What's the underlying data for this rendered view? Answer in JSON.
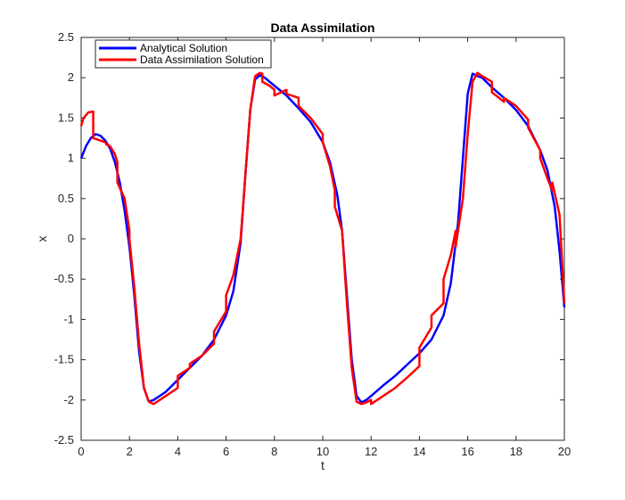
{
  "chart_data": {
    "type": "line",
    "title": "Data Assimilation",
    "xlabel": "t",
    "ylabel": "x",
    "xlim": [
      0,
      20
    ],
    "ylim": [
      -2.5,
      2.5
    ],
    "xticks": [
      0,
      2,
      4,
      6,
      8,
      10,
      12,
      14,
      16,
      18,
      20
    ],
    "yticks": [
      2.5,
      2,
      1.5,
      1,
      0.5,
      0,
      -0.5,
      -1,
      -1.5,
      -2,
      -2.5
    ],
    "xtick_labels": [
      "0",
      "2",
      "4",
      "6",
      "8",
      "10",
      "12",
      "14",
      "16",
      "18",
      "20"
    ],
    "ytick_labels": [
      "2.5",
      "2",
      "1.5",
      "1",
      "0.5",
      "0",
      "-0.5",
      "-1",
      "-1.5",
      "-2",
      "-2.5"
    ],
    "grid": false,
    "legend_position": "top-left",
    "series": [
      {
        "name": "Analytical Solution",
        "color": "#0000ff",
        "x": [
          0,
          0.2,
          0.4,
          0.6,
          0.8,
          1.0,
          1.2,
          1.4,
          1.6,
          1.8,
          2.0,
          2.2,
          2.4,
          2.6,
          2.8,
          3.0,
          3.5,
          4.0,
          4.5,
          5.0,
          5.5,
          6.0,
          6.3,
          6.6,
          6.8,
          7.0,
          7.2,
          7.4,
          7.6,
          8.0,
          8.5,
          9.0,
          9.5,
          10.0,
          10.3,
          10.6,
          10.8,
          11.0,
          11.2,
          11.4,
          11.6,
          11.8,
          12.0,
          12.5,
          13.0,
          13.5,
          14.0,
          14.5,
          15.0,
          15.3,
          15.6,
          15.8,
          16.0,
          16.2,
          16.4,
          16.6,
          17.0,
          17.5,
          18.0,
          18.5,
          19.0,
          19.3,
          19.6,
          19.8,
          20.0
        ],
        "y": [
          1.0,
          1.15,
          1.25,
          1.3,
          1.28,
          1.22,
          1.12,
          0.95,
          0.7,
          0.35,
          -0.1,
          -0.7,
          -1.4,
          -1.85,
          -2.02,
          -2.0,
          -1.9,
          -1.75,
          -1.6,
          -1.45,
          -1.25,
          -0.95,
          -0.65,
          -0.05,
          0.8,
          1.6,
          1.98,
          2.03,
          2.0,
          1.9,
          1.78,
          1.62,
          1.45,
          1.2,
          0.95,
          0.55,
          0.1,
          -0.7,
          -1.5,
          -1.95,
          -2.03,
          -2.0,
          -1.95,
          -1.82,
          -1.7,
          -1.56,
          -1.42,
          -1.25,
          -0.95,
          -0.55,
          0.2,
          1.0,
          1.8,
          2.05,
          2.02,
          2.0,
          1.88,
          1.75,
          1.6,
          1.4,
          1.1,
          0.85,
          0.4,
          -0.15,
          -0.85
        ]
      },
      {
        "name": "Data Assimilation Solution",
        "color": "#ff0000",
        "x": [
          0,
          0.1,
          0.3,
          0.5,
          0.5,
          0.7,
          1.0,
          1.05,
          1.2,
          1.4,
          1.5,
          1.5,
          1.8,
          2.0,
          2.0,
          2.2,
          2.4,
          2.6,
          2.8,
          3.0,
          3.5,
          4.0,
          4.0,
          4.5,
          4.5,
          5.0,
          5.5,
          5.5,
          6.0,
          6.0,
          6.3,
          6.6,
          6.8,
          7.0,
          7.2,
          7.4,
          7.5,
          7.5,
          7.8,
          8.0,
          8.0,
          8.5,
          8.5,
          9.0,
          9.0,
          9.5,
          10.0,
          10.0,
          10.3,
          10.5,
          10.5,
          10.8,
          11.0,
          11.2,
          11.4,
          11.6,
          11.8,
          12.0,
          12.0,
          12.5,
          13.0,
          13.5,
          14.0,
          14.0,
          14.5,
          14.5,
          15.0,
          15.0,
          15.3,
          15.5,
          15.5,
          15.8,
          16.0,
          16.2,
          16.4,
          16.6,
          17.0,
          17.0,
          17.5,
          17.5,
          18.0,
          18.5,
          18.5,
          19.0,
          19.0,
          19.3,
          19.5,
          19.5,
          19.8,
          20.0
        ],
        "y": [
          1.4,
          1.5,
          1.57,
          1.58,
          1.25,
          1.23,
          1.2,
          1.17,
          1.15,
          1.05,
          0.95,
          0.7,
          0.5,
          0.1,
          0.0,
          -0.6,
          -1.3,
          -1.85,
          -2.02,
          -2.05,
          -1.95,
          -1.85,
          -1.7,
          -1.6,
          -1.55,
          -1.45,
          -1.3,
          -1.15,
          -0.9,
          -0.7,
          -0.45,
          0.0,
          0.8,
          1.6,
          2.02,
          2.06,
          2.05,
          1.95,
          1.9,
          1.85,
          1.78,
          1.85,
          1.8,
          1.75,
          1.65,
          1.5,
          1.3,
          1.2,
          0.9,
          0.6,
          0.4,
          0.1,
          -0.8,
          -1.6,
          -2.02,
          -2.05,
          -2.03,
          -2.0,
          -2.05,
          -1.95,
          -1.85,
          -1.72,
          -1.58,
          -1.35,
          -1.1,
          -0.95,
          -0.8,
          -0.5,
          -0.2,
          0.1,
          -0.1,
          0.5,
          1.3,
          1.95,
          2.06,
          2.02,
          1.95,
          1.82,
          1.7,
          1.75,
          1.65,
          1.48,
          1.38,
          1.1,
          1.0,
          0.75,
          0.6,
          0.7,
          0.3,
          -0.8
        ]
      }
    ]
  }
}
